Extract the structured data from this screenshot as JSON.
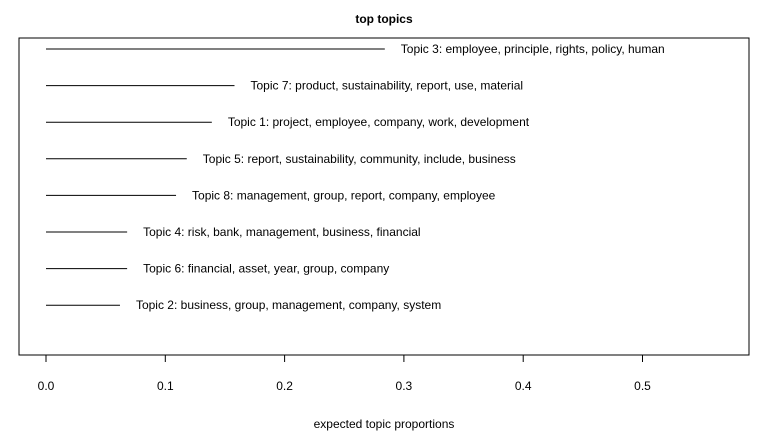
{
  "chart_data": {
    "type": "bar",
    "orientation": "horizontal",
    "title": "top topics",
    "xlabel": "expected topic proportions",
    "ylabel": "",
    "xlim": [
      0,
      0.5
    ],
    "xticks": [
      "0.0",
      "0.1",
      "0.2",
      "0.3",
      "0.4",
      "0.5"
    ],
    "xtick_values": [
      0,
      0.1,
      0.2,
      0.3,
      0.4,
      0.5
    ],
    "grid": false,
    "legend": "none",
    "categories": [
      "Topic 3: employee, principle, rights, policy, human",
      "Topic 7: product, sustainability, report, use, material",
      "Topic 1: project, employee, company, work, development",
      "Topic 5: report, sustainability, community, include, business",
      "Topic 8: management, group, report, company, employee",
      "Topic 4: risk, bank, management, business, financial",
      "Topic 6: financial, asset, year, group, company",
      "Topic 2: business, group, management, company, system"
    ],
    "values": [
      0.284,
      0.158,
      0.139,
      0.118,
      0.109,
      0.068,
      0.068,
      0.062
    ]
  }
}
